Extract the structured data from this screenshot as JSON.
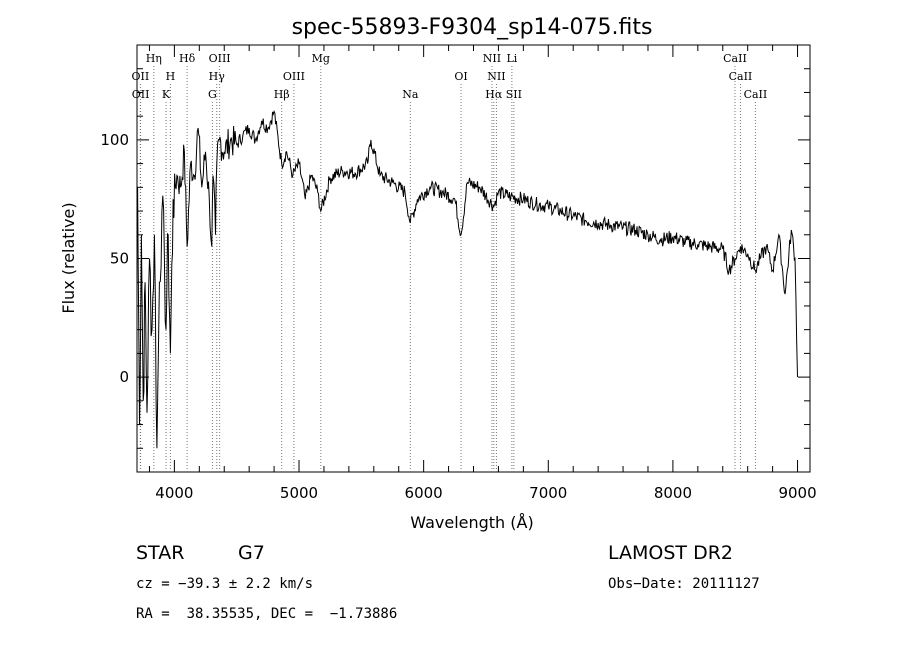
{
  "chart_data": {
    "type": "line",
    "title": "spec-55893-F9304_sp14-075.fits",
    "xlabel": "Wavelength (Å)",
    "ylabel": "Flux (relative)",
    "xlim": [
      3700,
      9100
    ],
    "ylim": [
      -40,
      140
    ],
    "xticks": [
      4000,
      5000,
      6000,
      7000,
      8000,
      9000
    ],
    "yticks": [
      0,
      50,
      100
    ],
    "grid": false,
    "series": [
      {
        "x": [
          3705,
          3720,
          3735,
          3750,
          3765,
          3780,
          3800,
          3820,
          3840,
          3860,
          3880,
          3900,
          3920,
          3933,
          3950,
          3968,
          3990,
          4020,
          4050,
          4080,
          4102,
          4130,
          4160,
          4190,
          4220,
          4250,
          4280,
          4300,
          4310,
          4330,
          4340,
          4360,
          4400,
          4450,
          4500,
          4550,
          4600,
          4650,
          4700,
          4750,
          4800,
          4861,
          4900,
          4950,
          5000,
          5050,
          5100,
          5150,
          5175,
          5250,
          5350,
          5450,
          5550,
          5577,
          5650,
          5750,
          5850,
          5893,
          5950,
          6050,
          6150,
          6250,
          6300,
          6350,
          6450,
          6563,
          6600,
          6700,
          6800,
          6900,
          7000,
          7100,
          7200,
          7300,
          7400,
          7500,
          7600,
          7700,
          7800,
          7900,
          8000,
          8100,
          8200,
          8300,
          8400,
          8450,
          8498,
          8542,
          8600,
          8662,
          8700,
          8750,
          8800,
          8850,
          8900,
          8950,
          8980,
          9000
        ],
        "values": [
          80,
          -20,
          60,
          -10,
          40,
          -15,
          50,
          20,
          60,
          -30,
          40,
          70,
          50,
          20,
          60,
          10,
          75,
          85,
          80,
          95,
          55,
          90,
          85,
          105,
          80,
          95,
          75,
          55,
          85,
          60,
          90,
          100,
          95,
          100,
          98,
          102,
          105,
          100,
          108,
          105,
          112,
          90,
          95,
          85,
          90,
          75,
          85,
          78,
          70,
          84,
          87,
          86,
          90,
          100,
          85,
          82,
          78,
          65,
          75,
          80,
          78,
          75,
          60,
          82,
          80,
          72,
          78,
          76,
          75,
          73,
          72,
          70,
          68,
          66,
          65,
          64,
          63,
          62,
          60,
          58,
          59,
          57,
          56,
          55,
          54,
          45,
          50,
          55,
          52,
          45,
          50,
          55,
          45,
          60,
          35,
          62,
          50,
          0
        ]
      }
    ],
    "lines": [
      {
        "label": "OII",
        "x": 3727,
        "row": 1
      },
      {
        "label": "OII",
        "x": 3729,
        "row": 2
      },
      {
        "label": "Hη",
        "x": 3835,
        "row": 0
      },
      {
        "label": "H",
        "x": 3968,
        "row": 1
      },
      {
        "label": "K",
        "x": 3933,
        "row": 2
      },
      {
        "label": "Hδ",
        "x": 4102,
        "row": 0
      },
      {
        "label": "OIII",
        "x": 4363,
        "row": 0
      },
      {
        "label": "Hγ",
        "x": 4340,
        "row": 1
      },
      {
        "label": "G",
        "x": 4305,
        "row": 2
      },
      {
        "label": "OIII",
        "x": 4959,
        "row": 1
      },
      {
        "label": "Hβ",
        "x": 4861,
        "row": 2
      },
      {
        "label": "Mg",
        "x": 5175,
        "row": 0
      },
      {
        "label": "Na",
        "x": 5893,
        "row": 2
      },
      {
        "label": "OI",
        "x": 6300,
        "row": 1
      },
      {
        "label": "NII",
        "x": 6548,
        "row": 0
      },
      {
        "label": "Li",
        "x": 6708,
        "row": 0
      },
      {
        "label": "NII",
        "x": 6584,
        "row": 1
      },
      {
        "label": "Hα",
        "x": 6563,
        "row": 2
      },
      {
        "label": "SII",
        "x": 6724,
        "row": 2
      },
      {
        "label": "CaII",
        "x": 8498,
        "row": 0
      },
      {
        "label": "CaII",
        "x": 8542,
        "row": 1
      },
      {
        "label": "CaII",
        "x": 8662,
        "row": 2
      }
    ]
  },
  "info": {
    "class_label": "STAR",
    "subclass": "G7",
    "survey": "LAMOST DR2",
    "cz": "cz = −39.3 ± 2.2 km/s",
    "obs_date": "Obs−Date: 20111127",
    "coords": "RA =  38.35535, DEC =  −1.73886"
  }
}
